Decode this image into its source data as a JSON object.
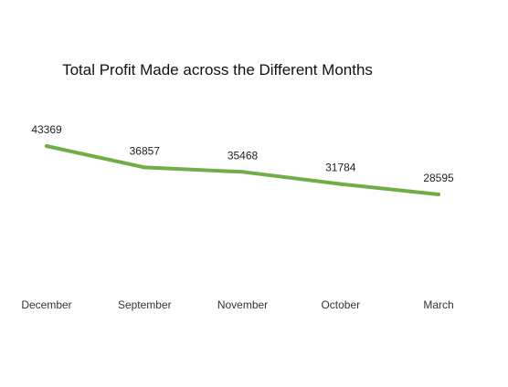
{
  "chart_data": {
    "type": "line",
    "title": "Total Profit Made across the Different Months",
    "categories": [
      "December",
      "September",
      "November",
      "October",
      "March"
    ],
    "series": [
      {
        "values": [
          43369,
          36857,
          35468,
          31784,
          28595
        ]
      }
    ],
    "line_color": "#70ad47",
    "data_labels": true,
    "grid": false,
    "legend": "none",
    "y_axis_visible": false
  }
}
